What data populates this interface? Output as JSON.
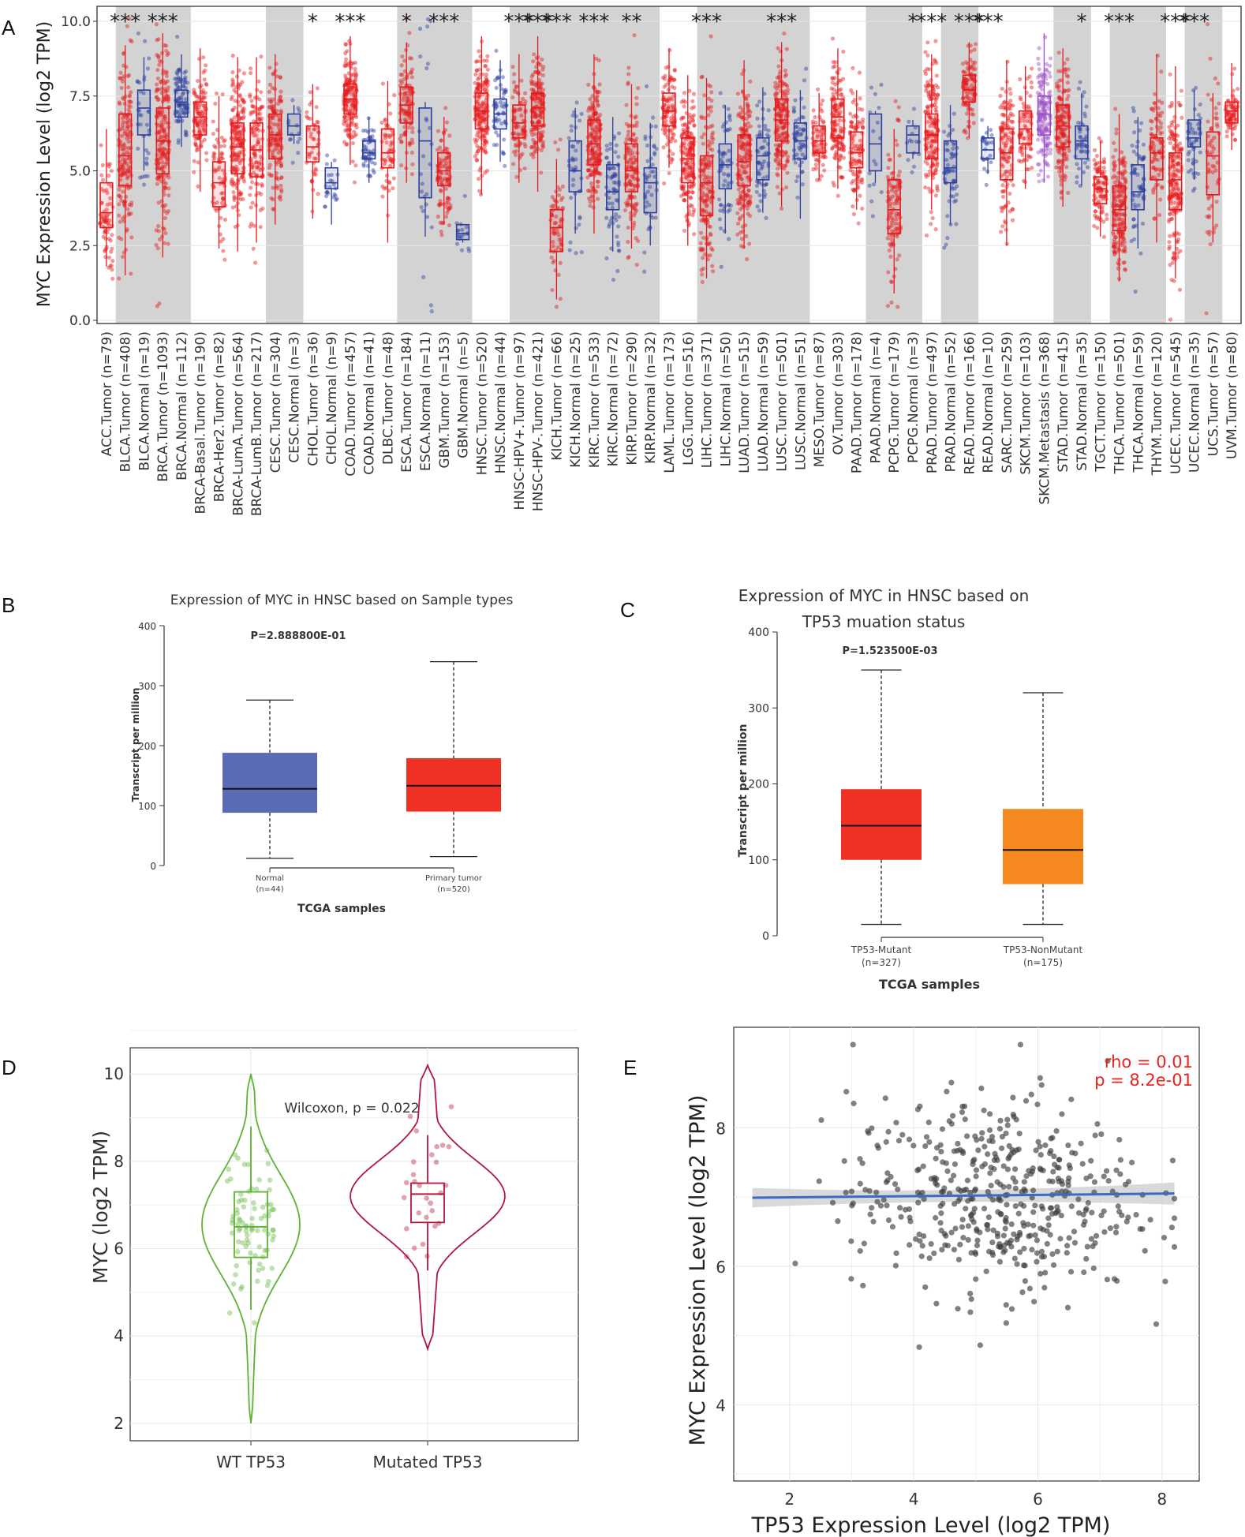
{
  "panels": {
    "a": "A",
    "b": "B",
    "c": "C",
    "d": "D",
    "e": "E"
  },
  "chart_data": [
    {
      "type": "box",
      "panel": "A",
      "ylabel": "MYC Expression Level (log2 TPM)",
      "ylim": [
        0,
        10
      ],
      "yticks": [
        "0.0",
        "2.5",
        "5.0",
        "7.5",
        "10.0"
      ],
      "colors": {
        "tumor": "#e41a1c",
        "normal": "#2c3e9e",
        "metastasis": "#9b4fc4",
        "band": "#d3d3d3"
      },
      "categories": [
        {
          "label": "ACC.Tumor (n=79)",
          "kind": "tumor",
          "median": 3.6,
          "q1": 3.1,
          "q3": 4.6,
          "min": 1.8,
          "max": 6.4,
          "sig": ""
        },
        {
          "label": "BLCA.Tumor (n=408)",
          "kind": "tumor",
          "median": 5.5,
          "q1": 4.5,
          "q3": 6.9,
          "min": 1.5,
          "max": 9.2,
          "sig": "***"
        },
        {
          "label": "BLCA.Normal (n=19)",
          "kind": "normal",
          "median": 7.1,
          "q1": 6.2,
          "q3": 7.7,
          "min": 5.0,
          "max": 8.8,
          "sig": ""
        },
        {
          "label": "BRCA.Tumor (n=1093)",
          "kind": "tumor",
          "median": 6.0,
          "q1": 4.9,
          "q3": 7.1,
          "min": 2.1,
          "max": 9.6,
          "sig": "***"
        },
        {
          "label": "BRCA.Normal (n=112)",
          "kind": "normal",
          "median": 7.3,
          "q1": 6.8,
          "q3": 7.7,
          "min": 5.8,
          "max": 8.9,
          "sig": ""
        },
        {
          "label": "BRCA-Basal.Tumor (n=190)",
          "kind": "tumor",
          "median": 6.8,
          "q1": 6.2,
          "q3": 7.3,
          "min": 4.3,
          "max": 9.1,
          "sig": ""
        },
        {
          "label": "BRCA-Her2.Tumor (n=82)",
          "kind": "tumor",
          "median": 4.6,
          "q1": 3.8,
          "q3": 5.3,
          "min": 2.4,
          "max": 7.5,
          "sig": ""
        },
        {
          "label": "BRCA-LumA.Tumor (n=564)",
          "kind": "tumor",
          "median": 5.8,
          "q1": 4.9,
          "q3": 6.6,
          "min": 2.3,
          "max": 8.8,
          "sig": ""
        },
        {
          "label": "BRCA-LumB.Tumor (n=217)",
          "kind": "tumor",
          "median": 5.7,
          "q1": 4.8,
          "q3": 6.6,
          "min": 2.6,
          "max": 8.8,
          "sig": ""
        },
        {
          "label": "CESC.Tumor (n=304)",
          "kind": "tumor",
          "median": 6.2,
          "q1": 5.4,
          "q3": 6.9,
          "min": 3.2,
          "max": 8.9,
          "sig": ""
        },
        {
          "label": "CESC.Normal (n=3)",
          "kind": "normal",
          "median": 6.5,
          "q1": 6.2,
          "q3": 6.9,
          "min": 5.9,
          "max": 7.2,
          "sig": ""
        },
        {
          "label": "CHOL.Tumor (n=36)",
          "kind": "tumor",
          "median": 5.8,
          "q1": 5.3,
          "q3": 6.5,
          "min": 3.4,
          "max": 7.9,
          "sig": "*"
        },
        {
          "label": "CHOL.Normal (n=9)",
          "kind": "normal",
          "median": 4.6,
          "q1": 4.4,
          "q3": 5.1,
          "min": 3.2,
          "max": 5.3,
          "sig": ""
        },
        {
          "label": "COAD.Tumor (n=457)",
          "kind": "tumor",
          "median": 7.4,
          "q1": 6.9,
          "q3": 7.9,
          "min": 5.2,
          "max": 9.5,
          "sig": "***"
        },
        {
          "label": "COAD.Normal (n=41)",
          "kind": "normal",
          "median": 5.6,
          "q1": 5.4,
          "q3": 6.0,
          "min": 4.6,
          "max": 6.8,
          "sig": ""
        },
        {
          "label": "DLBC.Tumor (n=48)",
          "kind": "tumor",
          "median": 5.6,
          "q1": 5.1,
          "q3": 6.4,
          "min": 2.6,
          "max": 8.0,
          "sig": ""
        },
        {
          "label": "ESCA.Tumor (n=184)",
          "kind": "tumor",
          "median": 7.2,
          "q1": 6.6,
          "q3": 7.8,
          "min": 4.6,
          "max": 9.3,
          "sig": "*"
        },
        {
          "label": "ESCA.Normal (n=11)",
          "kind": "normal",
          "median": 6.0,
          "q1": 4.1,
          "q3": 7.1,
          "min": 2.8,
          "max": 7.3,
          "sig": ""
        },
        {
          "label": "GBM.Tumor (n=153)",
          "kind": "tumor",
          "median": 5.0,
          "q1": 4.5,
          "q3": 5.6,
          "min": 3.2,
          "max": 6.8,
          "sig": "***"
        },
        {
          "label": "GBM.Normal (n=5)",
          "kind": "normal",
          "median": 2.9,
          "q1": 2.7,
          "q3": 3.2,
          "min": 2.6,
          "max": 3.2,
          "sig": ""
        },
        {
          "label": "HNSC.Tumor (n=520)",
          "kind": "tumor",
          "median": 7.0,
          "q1": 6.4,
          "q3": 7.6,
          "min": 4.2,
          "max": 9.5,
          "sig": ""
        },
        {
          "label": "HNSC.Normal (n=44)",
          "kind": "normal",
          "median": 6.9,
          "q1": 6.4,
          "q3": 7.4,
          "min": 5.3,
          "max": 8.7,
          "sig": ""
        },
        {
          "label": "HNSC-HPV+.Tumor (n=97)",
          "kind": "tumor",
          "median": 6.6,
          "q1": 6.1,
          "q3": 7.2,
          "min": 4.6,
          "max": 8.9,
          "sig": "***"
        },
        {
          "label": "HNSC-HPV-.Tumor (n=421)",
          "kind": "tumor",
          "median": 7.1,
          "q1": 6.5,
          "q3": 7.6,
          "min": 4.3,
          "max": 9.5,
          "sig": "***"
        },
        {
          "label": "KICH.Tumor (n=66)",
          "kind": "tumor",
          "median": 3.1,
          "q1": 2.3,
          "q3": 3.7,
          "min": 0.7,
          "max": 5.4,
          "sig": "***"
        },
        {
          "label": "KICH.Normal (n=25)",
          "kind": "normal",
          "median": 5.0,
          "q1": 4.3,
          "q3": 6.0,
          "min": 2.9,
          "max": 7.1,
          "sig": ""
        },
        {
          "label": "KIRC.Tumor (n=533)",
          "kind": "tumor",
          "median": 5.9,
          "q1": 5.2,
          "q3": 6.7,
          "min": 2.9,
          "max": 8.9,
          "sig": "***"
        },
        {
          "label": "KIRC.Normal (n=72)",
          "kind": "normal",
          "median": 4.3,
          "q1": 3.7,
          "q3": 5.2,
          "min": 2.3,
          "max": 6.8,
          "sig": ""
        },
        {
          "label": "KIRP.Tumor (n=290)",
          "kind": "tumor",
          "median": 5.0,
          "q1": 4.3,
          "q3": 5.9,
          "min": 2.4,
          "max": 7.9,
          "sig": "**"
        },
        {
          "label": "KIRP.Normal (n=32)",
          "kind": "normal",
          "median": 4.6,
          "q1": 3.6,
          "q3": 5.1,
          "min": 2.5,
          "max": 6.6,
          "sig": ""
        },
        {
          "label": "LAML.Tumor (n=173)",
          "kind": "tumor",
          "median": 7.0,
          "q1": 6.5,
          "q3": 7.6,
          "min": 5.1,
          "max": 9.1,
          "sig": ""
        },
        {
          "label": "LGG.Tumor (n=516)",
          "kind": "tumor",
          "median": 5.4,
          "q1": 4.6,
          "q3": 6.1,
          "min": 2.5,
          "max": 8.2,
          "sig": ""
        },
        {
          "label": "LIHC.Tumor (n=371)",
          "kind": "tumor",
          "median": 4.6,
          "q1": 3.5,
          "q3": 5.5,
          "min": 1.4,
          "max": 8.1,
          "sig": "***"
        },
        {
          "label": "LIHC.Normal (n=50)",
          "kind": "normal",
          "median": 5.2,
          "q1": 4.4,
          "q3": 5.9,
          "min": 2.9,
          "max": 7.2,
          "sig": ""
        },
        {
          "label": "LUAD.Tumor (n=515)",
          "kind": "tumor",
          "median": 5.3,
          "q1": 4.5,
          "q3": 6.2,
          "min": 2.4,
          "max": 8.7,
          "sig": ""
        },
        {
          "label": "LUAD.Normal (n=59)",
          "kind": "normal",
          "median": 5.5,
          "q1": 4.7,
          "q3": 6.1,
          "min": 3.6,
          "max": 7.8,
          "sig": ""
        },
        {
          "label": "LUSC.Tumor (n=501)",
          "kind": "tumor",
          "median": 6.7,
          "q1": 6.0,
          "q3": 7.4,
          "min": 3.8,
          "max": 9.3,
          "sig": "***"
        },
        {
          "label": "LUSC.Normal (n=51)",
          "kind": "normal",
          "median": 6.0,
          "q1": 5.4,
          "q3": 6.6,
          "min": 3.4,
          "max": 7.7,
          "sig": ""
        },
        {
          "label": "MESO.Tumor (n=87)",
          "kind": "tumor",
          "median": 6.0,
          "q1": 5.6,
          "q3": 6.5,
          "min": 4.7,
          "max": 7.6,
          "sig": ""
        },
        {
          "label": "OV.Tumor (n=303)",
          "kind": "tumor",
          "median": 6.8,
          "q1": 6.1,
          "q3": 7.4,
          "min": 4.4,
          "max": 9.1,
          "sig": ""
        },
        {
          "label": "PAAD.Tumor (n=178)",
          "kind": "tumor",
          "median": 5.6,
          "q1": 5.1,
          "q3": 6.3,
          "min": 3.7,
          "max": 7.7,
          "sig": ""
        },
        {
          "label": "PAAD.Normal (n=4)",
          "kind": "normal",
          "median": 5.9,
          "q1": 5.0,
          "q3": 6.9,
          "min": 4.6,
          "max": 7.0,
          "sig": ""
        },
        {
          "label": "PCPG.Tumor (n=179)",
          "kind": "tumor",
          "median": 3.7,
          "q1": 2.9,
          "q3": 4.7,
          "min": 0.9,
          "max": 6.4,
          "sig": ""
        },
        {
          "label": "PCPG.Normal (n=3)",
          "kind": "normal",
          "median": 6.2,
          "q1": 5.6,
          "q3": 6.5,
          "min": 5.4,
          "max": 6.7,
          "sig": "*"
        },
        {
          "label": "PRAD.Tumor (n=497)",
          "kind": "tumor",
          "median": 6.2,
          "q1": 5.4,
          "q3": 6.9,
          "min": 3.7,
          "max": 8.9,
          "sig": "***"
        },
        {
          "label": "PRAD.Normal (n=52)",
          "kind": "normal",
          "median": 5.1,
          "q1": 4.6,
          "q3": 6.0,
          "min": 3.2,
          "max": 7.2,
          "sig": ""
        },
        {
          "label": "READ.Tumor (n=166)",
          "kind": "tumor",
          "median": 7.7,
          "q1": 7.3,
          "q3": 8.2,
          "min": 6.1,
          "max": 9.3,
          "sig": "***"
        },
        {
          "label": "READ.Normal (n=10)",
          "kind": "normal",
          "median": 5.7,
          "q1": 5.4,
          "q3": 6.1,
          "min": 4.9,
          "max": 6.5,
          "sig": "***"
        },
        {
          "label": "SARC.Tumor (n=259)",
          "kind": "tumor",
          "median": 5.6,
          "q1": 4.7,
          "q3": 6.4,
          "min": 2.5,
          "max": 8.7,
          "sig": ""
        },
        {
          "label": "SKCM.Tumor (n=103)",
          "kind": "tumor",
          "median": 6.4,
          "q1": 5.9,
          "q3": 7.0,
          "min": 4.4,
          "max": 8.5,
          "sig": ""
        },
        {
          "label": "SKCM.Metastasis (n=368)",
          "kind": "metastasis",
          "median": 6.9,
          "q1": 6.2,
          "q3": 7.5,
          "min": 4.6,
          "max": 9.6,
          "sig": ""
        },
        {
          "label": "STAD.Tumor (n=415)",
          "kind": "tumor",
          "median": 6.5,
          "q1": 5.8,
          "q3": 7.2,
          "min": 3.8,
          "max": 9.1,
          "sig": ""
        },
        {
          "label": "STAD.Normal (n=35)",
          "kind": "normal",
          "median": 6.0,
          "q1": 5.4,
          "q3": 6.5,
          "min": 4.5,
          "max": 7.6,
          "sig": "*"
        },
        {
          "label": "TGCT.Tumor (n=150)",
          "kind": "tumor",
          "median": 4.4,
          "q1": 3.9,
          "q3": 4.8,
          "min": 2.8,
          "max": 6.0,
          "sig": ""
        },
        {
          "label": "THCA.Tumor (n=501)",
          "kind": "tumor",
          "median": 3.7,
          "q1": 3.0,
          "q3": 4.5,
          "min": 1.3,
          "max": 6.9,
          "sig": "***"
        },
        {
          "label": "THCA.Normal (n=59)",
          "kind": "normal",
          "median": 4.3,
          "q1": 3.7,
          "q3": 5.2,
          "min": 2.4,
          "max": 6.8,
          "sig": ""
        },
        {
          "label": "THYM.Tumor (n=120)",
          "kind": "tumor",
          "median": 5.6,
          "q1": 4.7,
          "q3": 6.1,
          "min": 2.6,
          "max": 8.9,
          "sig": ""
        },
        {
          "label": "UCEC.Tumor (n=545)",
          "kind": "tumor",
          "median": 4.7,
          "q1": 3.7,
          "q3": 5.6,
          "min": 1.4,
          "max": 8.5,
          "sig": "***"
        },
        {
          "label": "UCEC.Normal (n=35)",
          "kind": "normal",
          "median": 6.1,
          "q1": 5.8,
          "q3": 6.7,
          "min": 4.7,
          "max": 7.7,
          "sig": "***"
        },
        {
          "label": "UCS.Tumor (n=57)",
          "kind": "tumor",
          "median": 5.5,
          "q1": 4.2,
          "q3": 6.3,
          "min": 2.6,
          "max": 7.6,
          "sig": ""
        },
        {
          "label": "UVM.Tumor (n=80)",
          "kind": "tumor",
          "median": 7.0,
          "q1": 6.6,
          "q3": 7.3,
          "min": 5.7,
          "max": 8.6,
          "sig": ""
        }
      ],
      "bands": [
        [
          1,
          4
        ],
        [
          9,
          10
        ],
        [
          16,
          19
        ],
        [
          22,
          29
        ],
        [
          32,
          37
        ],
        [
          41,
          43
        ],
        [
          45,
          46
        ],
        [
          51,
          52
        ],
        [
          54,
          56
        ],
        [
          58,
          59
        ]
      ]
    },
    {
      "type": "box",
      "panel": "B",
      "title": "Expression of MYC in HNSC based on Sample types",
      "pvalue": "P=2.888800E-01",
      "xlabel": "TCGA samples",
      "ylabel": "Transcript per million",
      "ylim": [
        0,
        400
      ],
      "yticks": [
        0,
        100,
        200,
        300,
        400
      ],
      "groups": [
        {
          "label": "Normal",
          "n": "(n=44)",
          "color": "#5b6ab5",
          "min": 12,
          "q1": 88,
          "median": 128,
          "q3": 188,
          "max": 276
        },
        {
          "label": "Primary tumor",
          "n": "(n=520)",
          "color": "#ee3124",
          "min": 15,
          "q1": 90,
          "median": 133,
          "q3": 179,
          "max": 340
        }
      ]
    },
    {
      "type": "box",
      "panel": "C",
      "title_line1": "Expression of MYC in HNSC based on",
      "title_line2": "TP53 muation status",
      "pvalue": "P=1.523500E-03",
      "xlabel": "TCGA samples",
      "ylabel": "Transcript per million",
      "ylim": [
        0,
        400
      ],
      "yticks": [
        0,
        100,
        200,
        300,
        400
      ],
      "groups": [
        {
          "label": "TP53-Mutant",
          "n": "(n=327)",
          "color": "#ee3124",
          "min": 15,
          "q1": 100,
          "median": 145,
          "q3": 193,
          "max": 350
        },
        {
          "label": "TP53-NonMutant",
          "n": "(n=175)",
          "color": "#f5891f",
          "min": 15,
          "q1": 68,
          "median": 113,
          "q3": 167,
          "max": 320
        }
      ]
    },
    {
      "type": "violin",
      "panel": "D",
      "ylabel": "MYC   (log2 TPM)",
      "annotation": "Wilcoxon, p = 0.022",
      "ylim": [
        1.6,
        10.6
      ],
      "yticks": [
        2,
        4,
        6,
        8,
        10
      ],
      "groups": [
        {
          "label": "WT TP53",
          "color": "#5fb236",
          "min": 2.0,
          "max": 10.0,
          "q1": 5.8,
          "median": 6.5,
          "q3": 7.3,
          "whisker_lo": 4.6,
          "whisker_hi": 8.8
        },
        {
          "label": "Mutated TP53",
          "color": "#b0173d",
          "min": 3.7,
          "max": 10.2,
          "q1": 6.6,
          "median": 7.25,
          "q3": 7.5,
          "whisker_lo": 5.5,
          "whisker_hi": 8.6
        }
      ]
    },
    {
      "type": "scatter",
      "panel": "E",
      "xlabel": "TP53 Expression Level (log2 TPM)",
      "ylabel": "MYC Expression Level (log2 TPM)",
      "annotation_rho": "rho = 0.01",
      "annotation_p": "p = 8.2e-01",
      "xlim": [
        1.1,
        8.6
      ],
      "ylim": [
        2.9,
        9.45
      ],
      "xticks": [
        2,
        4,
        6,
        8
      ],
      "yticks": [
        4,
        6,
        8
      ],
      "fit": {
        "x0": 1.4,
        "y0": 6.99,
        "x1": 8.2,
        "y1": 7.05,
        "color": "#3a6bc2"
      },
      "n_points": 480
    }
  ]
}
